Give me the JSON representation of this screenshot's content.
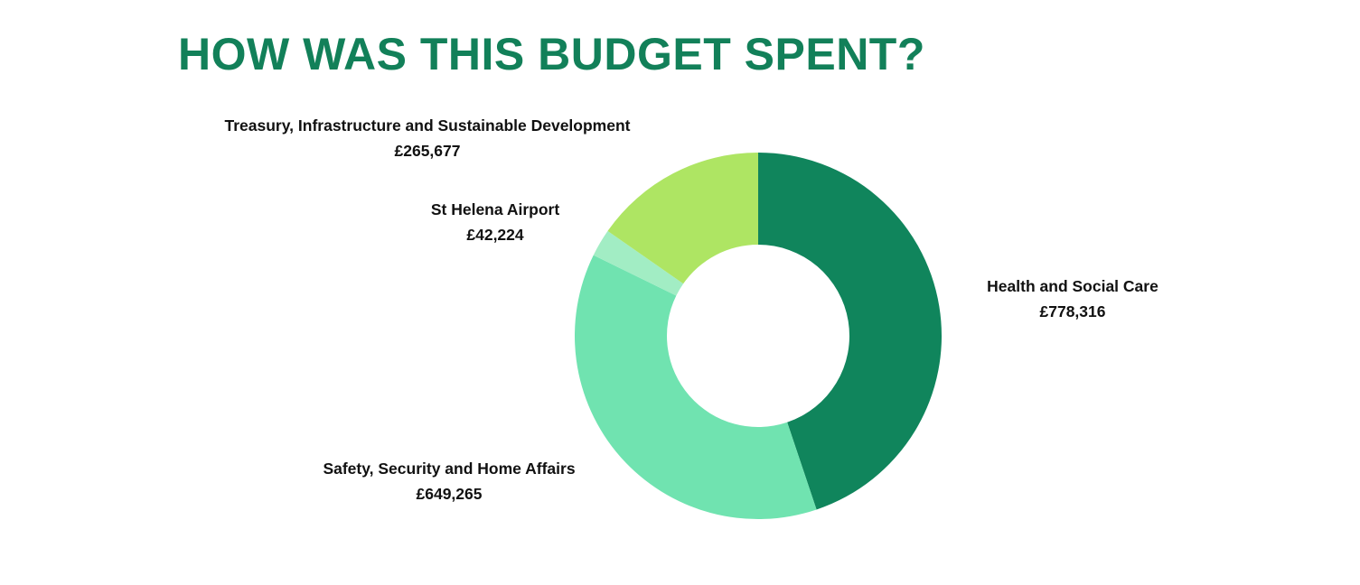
{
  "title": "HOW WAS THIS BUDGET SPENT?",
  "colors": {
    "title": "#128059",
    "health": "#10855C",
    "safety": "#70E3B0",
    "airport": "#A2EDC4",
    "treasury": "#AEE563"
  },
  "chart_data": {
    "type": "pie",
    "donut": true,
    "title": "HOW WAS THIS BUDGET SPENT?",
    "categories": [
      "Health and Social Care",
      "Safety, Security and Home Affairs",
      "St Helena Airport",
      "Treasury, Infrastructure and Sustainable Development"
    ],
    "values": [
      778316,
      649265,
      42224,
      265677
    ],
    "value_labels": [
      "£778,316",
      "£649,265",
      "£42,224",
      "£265,677"
    ],
    "slice_colors": [
      "#10855C",
      "#70E3B0",
      "#A2EDC4",
      "#AEE563"
    ]
  }
}
